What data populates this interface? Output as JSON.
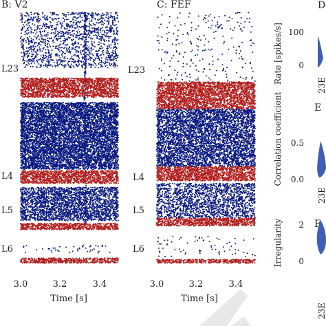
{
  "colors": {
    "excitatory": "#0b1a80",
    "inhibitory": "#b3201f",
    "violin": "#3f5fb5",
    "watermark": "#e8e8e8"
  },
  "chart_data": [
    {
      "type": "scatter",
      "title": "B: V2",
      "xlabel": "Time [s]",
      "xlim": [
        3.0,
        3.5
      ],
      "xticks": [
        "3.0",
        "3.2",
        "3.4"
      ],
      "layers": [
        "L23",
        "L4",
        "L5",
        "L6"
      ],
      "series": [
        {
          "color": "excitatory",
          "bands": [
            [
              0.0,
              0.215,
              0.22
            ],
            [
              0.35,
              0.61,
              0.95
            ],
            [
              0.68,
              0.81,
              0.65
            ],
            [
              0.905,
              0.935,
              0.05
            ]
          ],
          "dense_stripes": [
            3.33
          ]
        },
        {
          "color": "inhibitory",
          "bands": [
            [
              0.255,
              0.33,
              0.9
            ],
            [
              0.615,
              0.665,
              0.9
            ],
            [
              0.82,
              0.845,
              0.9
            ],
            [
              0.955,
              0.975,
              0.9
            ]
          ]
        }
      ]
    },
    {
      "type": "scatter",
      "title": "C: FEF",
      "xlabel": "Time [s]",
      "xlim": [
        3.0,
        3.5
      ],
      "xticks": [
        "3.0",
        "3.2",
        "3.4"
      ],
      "layers": [
        "L23",
        "L4",
        "L5",
        "L6"
      ],
      "series": [
        {
          "color": "excitatory",
          "bands": [
            [
              0.0,
              0.27,
              0.03
            ],
            [
              0.375,
              0.6,
              0.7
            ],
            [
              0.665,
              0.8,
              0.45
            ],
            [
              0.87,
              0.95,
              0.03
            ]
          ]
        },
        {
          "color": "inhibitory",
          "bands": [
            [
              0.27,
              0.375,
              0.85
            ],
            [
              0.6,
              0.655,
              0.9
            ],
            [
              0.8,
              0.83,
              0.9
            ],
            [
              0.96,
              0.975,
              0.9
            ]
          ]
        }
      ]
    },
    {
      "type": "violin",
      "title": "D",
      "ylabel": "Rate [spikes/s]",
      "yticks": [
        "100",
        "0"
      ],
      "ylim": [
        0,
        120
      ]
    },
    {
      "type": "violin",
      "title": "E",
      "ylabel": "Correlation coefficient",
      "yticks": [
        "0.5",
        "0.0"
      ],
      "ylim": [
        -0.1,
        0.6
      ]
    },
    {
      "type": "violin",
      "title": "F",
      "ylabel": "Irregularity",
      "yticks": [
        "2",
        "0"
      ],
      "ylim": [
        0,
        2.5
      ],
      "xticks": [
        "23E"
      ]
    }
  ],
  "rate_xtick": "23E",
  "corr_xtick": "23E",
  "watermark_text": ""
}
